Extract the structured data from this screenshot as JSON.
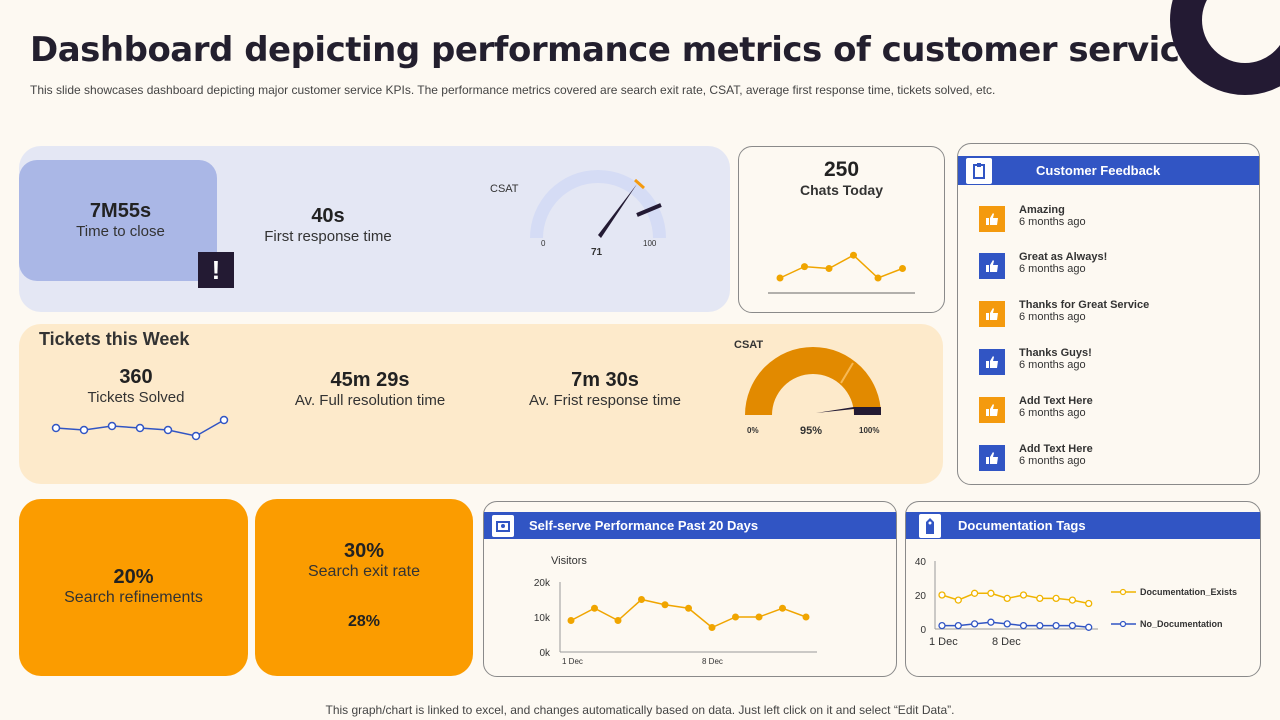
{
  "page": {
    "title": "Dashboard depicting performance metrics of customer service",
    "subtitle": "This slide showcases dashboard depicting major customer service KPIs. The performance metrics covered are search exit rate, CSAT,  average first response time, tickets solved, etc.",
    "footer": "This graph/chart is linked to excel,  and changes automatically based on data. Just left click on it and select “Edit Data”."
  },
  "top": {
    "time_to_close_value": "7M55s",
    "time_to_close_label": "Time to close",
    "first_response_value": "40s",
    "first_response_label": "First response time",
    "alert_glyph": "!",
    "csat_label": "CSAT",
    "csat_min": "0",
    "csat_max": "100",
    "csat_value": "71"
  },
  "chats": {
    "value": "250",
    "label": "Chats Today",
    "chart_data": {
      "type": "line",
      "values": [
        4,
        7,
        6.5,
        10,
        4,
        6.5
      ]
    }
  },
  "feedback": {
    "title": "Customer  Feedback",
    "items": [
      {
        "title": "Amazing",
        "time": "6 months ago",
        "color": "#f49a0e"
      },
      {
        "title": "Great as Always!",
        "time": "6 months ago",
        "color": "#3155c4"
      },
      {
        "title": "Thanks for Great Service",
        "time": "6 months ago",
        "color": "#f49a0e"
      },
      {
        "title": "Thanks Guys!",
        "time": "6 months ago",
        "color": "#3155c4"
      },
      {
        "title": "Add Text Here",
        "time": "6 months ago",
        "color": "#f49a0e"
      },
      {
        "title": "Add Text Here",
        "time": "6 months ago",
        "color": "#3155c4"
      }
    ]
  },
  "tickets": {
    "heading": "Tickets this Week",
    "solved_value": "360",
    "solved_label": "Tickets Solved",
    "full_res_value": "45m 29s",
    "full_res_label": "Av. Full resolution time",
    "first_resp_value": "7m 30s",
    "first_resp_label": "Av. Frist response time",
    "spark": [
      6,
      5,
      7,
      6,
      5,
      2,
      10
    ],
    "csat_label": "CSAT",
    "csat_min": "0%",
    "csat_max": "100%",
    "csat_value": "95%"
  },
  "search": {
    "refine_value": "20%",
    "refine_label": "Search refinements",
    "exit_value": "30%",
    "exit_label": "Search exit rate",
    "exit_sub": "28%"
  },
  "selfserve": {
    "title": "Self-serve  Performance  Past 20 Days",
    "series_label": "Visitors",
    "chart_data": {
      "type": "line",
      "y_ticks": [
        "20k",
        "10k",
        "0k"
      ],
      "x_ticks": [
        "1 Dec",
        "8 Dec"
      ],
      "ylim": [
        0,
        20
      ],
      "values": [
        9,
        12.5,
        9,
        15,
        13.5,
        12.5,
        7,
        10,
        10,
        12.5,
        10
      ]
    }
  },
  "docs": {
    "title": "Documentation  Tags",
    "chart_data": {
      "type": "line",
      "y_ticks": [
        "40",
        "20",
        "0"
      ],
      "x_ticks": [
        "1 Dec",
        "8 Dec"
      ],
      "ylim": [
        0,
        40
      ],
      "series": [
        {
          "name": "Documentation_Exists",
          "color": "#f0b400",
          "values": [
            20,
            17,
            21,
            21,
            18,
            20,
            18,
            18,
            17,
            15
          ]
        },
        {
          "name": "No_Documentation",
          "color": "#3155c4",
          "values": [
            2,
            2,
            3,
            4,
            3,
            2,
            2,
            2,
            2,
            1
          ]
        }
      ]
    }
  }
}
